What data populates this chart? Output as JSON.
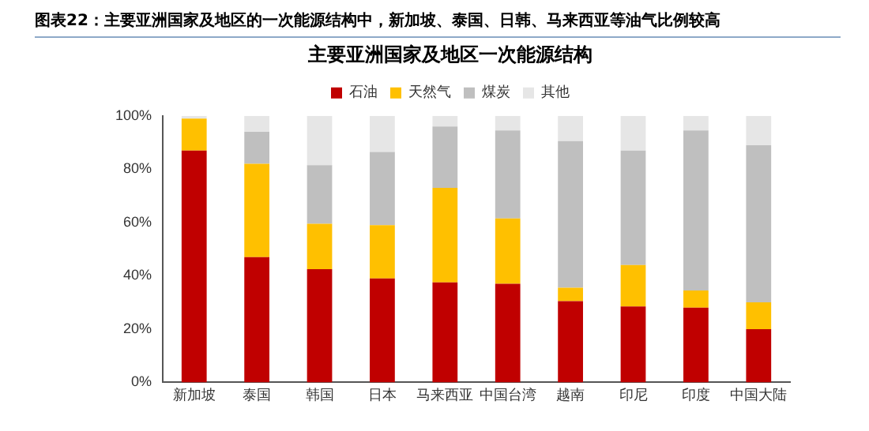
{
  "chart_data": {
    "type": "bar",
    "title": "图表22：主要亚洲国家及地区的一次能源结构中，新加坡、泰国、日韩、马来西亚等油气比例较高",
    "subtitle": "主要亚洲国家及地区一次能源结构",
    "stacked": true,
    "legend": "top",
    "grid": false,
    "categories": [
      "新加坡",
      "泰国",
      "韩国",
      "日本",
      "马来西亚",
      "中国台湾",
      "越南",
      "印尼",
      "印度",
      "中国大陆"
    ],
    "series": [
      {
        "name": "石油",
        "color": "#c00000",
        "values": [
          87,
          47,
          42.5,
          39,
          37.5,
          37,
          30.5,
          28.5,
          28,
          20
        ]
      },
      {
        "name": "天然气",
        "color": "#ffc000",
        "values": [
          12,
          35,
          17,
          20,
          35.5,
          24.5,
          5,
          15.5,
          6.5,
          10
        ]
      },
      {
        "name": "煤炭",
        "color": "#bfbfbf",
        "values": [
          0,
          12,
          22,
          27.5,
          23,
          33,
          55,
          43,
          60,
          59
        ]
      },
      {
        "name": "其他",
        "color": "#e6e6e6",
        "values": [
          1,
          6,
          18.5,
          13.5,
          4,
          5.5,
          9.5,
          13,
          5.5,
          11
        ]
      }
    ],
    "ylim": [
      0,
      100
    ],
    "yticks": [
      {
        "value": 0,
        "label": "0%"
      },
      {
        "value": 20,
        "label": "20%"
      },
      {
        "value": 40,
        "label": "40%"
      },
      {
        "value": 60,
        "label": "60%"
      },
      {
        "value": 80,
        "label": "80%"
      },
      {
        "value": 100,
        "label": "100%"
      }
    ]
  }
}
